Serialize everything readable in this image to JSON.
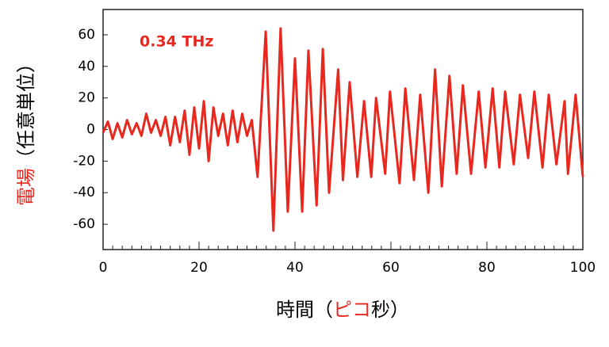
{
  "chart_data": {
    "type": "line",
    "annotation": "0.34 THz",
    "annotation_color": "#e8281e",
    "xlabel_parts": [
      "時間（",
      "ピコ",
      "秒）"
    ],
    "xlabel_colors": [
      "#000000",
      "#e8281e",
      "#000000"
    ],
    "ylabel_parts": [
      "電場",
      "（任意単位）"
    ],
    "ylabel_colors": [
      "#e8281e",
      "#000000"
    ],
    "xlim": [
      0,
      100
    ],
    "xticks": [
      0,
      20,
      40,
      60,
      80,
      100
    ],
    "ylim": [
      -76,
      76
    ],
    "yticks": [
      -60,
      -40,
      -20,
      0,
      20,
      40,
      60
    ],
    "series": [
      {
        "color": "#e8281e",
        "x": [
          0,
          1,
          2,
          3,
          4,
          5,
          6,
          7,
          8,
          9,
          10,
          11,
          12,
          13,
          14,
          15,
          16,
          17,
          18,
          19,
          20,
          21,
          22,
          23,
          24,
          25,
          26,
          27,
          28,
          29,
          30,
          31,
          32.2,
          33.9,
          35.5,
          37,
          38.5,
          40,
          41.5,
          42.8,
          44.5,
          45.8,
          47.1,
          49,
          50,
          51.4,
          53,
          54.4,
          55.9,
          56.9,
          58.8,
          59.8,
          61.8,
          63,
          64.8,
          66.1,
          67.8,
          69.2,
          70.6,
          72.2,
          73.7,
          75,
          76.7,
          78.3,
          79.7,
          81.2,
          82.6,
          83.8,
          85.6,
          86.9,
          88.6,
          89.9,
          91.6,
          92.9,
          94.5,
          96.2,
          96.9,
          98.5,
          100
        ],
        "values": [
          -2,
          5,
          -6,
          4,
          -5,
          6,
          -3,
          4,
          -4,
          10,
          -2,
          6,
          -4,
          8,
          -10,
          8,
          -8,
          12,
          -16,
          14,
          -12,
          18,
          -20,
          14,
          -4,
          10,
          -10,
          12,
          -8,
          10,
          -4,
          6,
          -30,
          62,
          -64,
          64,
          -52,
          45,
          -52,
          50,
          -48,
          51,
          -40,
          38,
          -32,
          30,
          -30,
          18,
          -30,
          20,
          -28,
          24,
          -34,
          26,
          -32,
          22,
          -40,
          38,
          -36,
          34,
          -28,
          28,
          -28,
          24,
          -24,
          26,
          -24,
          24,
          -22,
          22,
          -18,
          24,
          -24,
          22,
          -22,
          18,
          -28,
          22,
          -30
        ]
      }
    ]
  }
}
